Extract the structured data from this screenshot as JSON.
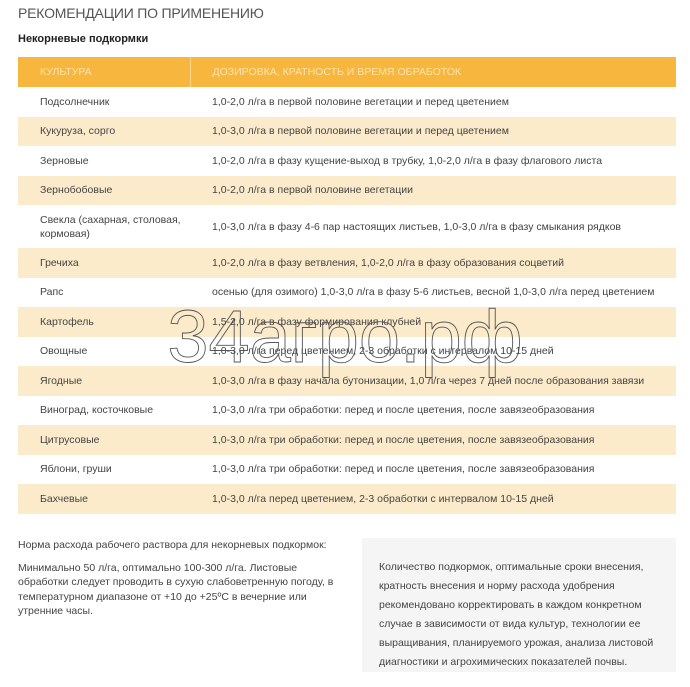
{
  "title": "РЕКОМЕНДАЦИИ ПО ПРИМЕНЕНИЮ",
  "subtitle": "Некорневые подкормки",
  "table": {
    "headers": [
      "КУЛЬТУРА",
      "ДОЗИРОВКА, КРАТНОСТЬ И ВРЕМЯ ОБРАБОТОК"
    ],
    "header_color": "#f7b73e",
    "stripe_color": "#fcebcb",
    "rows": [
      [
        "Подсолнечник",
        "1,0-2,0 л/га в первой половине вегетации и перед цветением"
      ],
      [
        "Кукуруза, сорго",
        "1,0-3,0 л/га в первой половине вегетации и перед цветением"
      ],
      [
        "Зерновые",
        "1,0-2,0 л/га в фазу кущение-выход в трубку, 1,0-2,0 л/га в фазу флагового листа"
      ],
      [
        "Зернобобовые",
        "1,0-2,0 л/га в первой половине вегетации"
      ],
      [
        "Свекла (сахарная, столовая, кормовая)",
        "1,0-3,0 л/га в фазу 4-6 пар настоящих листьев, 1,0-3,0 л/га в фазу смыкания рядков"
      ],
      [
        "Гречиха",
        "1,0-2,0 л/га в фазу ветвления, 1,0-2,0 л/га в фазу образования соцветий"
      ],
      [
        "Рапс",
        "осенью (для озимого) 1,0-3,0 л/га в фазу 5-6 листьев, весной 1,0-3,0 л/га перед цветением"
      ],
      [
        "Картофель",
        "1,5-2,0 л/га в фазу формирования клубней"
      ],
      [
        "Овощные",
        "1,0-3,0 л/га перед цветением, 2-3 обработки с интервалом 10-15 дней"
      ],
      [
        "Ягодные",
        "1,0-3,0 л/га в фазу начала бутонизации, 1,0 л/га через 7 дней после образования завязи"
      ],
      [
        "Виноград, косточковые",
        "1,0-3,0 л/га три обработки: перед и после цветения, после завязеобразования"
      ],
      [
        "Цитрусовые",
        "1,0-3,0 л/га три обработки: перед и после цветения, после завязеобразования"
      ],
      [
        "Яблони, груши",
        "1,0-3,0 л/га три обработки: перед и после цветения, после завязеобразования"
      ],
      [
        "Бахчевые",
        "1,0-3,0 л/га перед цветением, 2-3 обработки с интервалом 10-15 дней"
      ]
    ]
  },
  "norm": {
    "heading": "Норма расхода рабочего раствора для некорневых подкормок:",
    "text": "Минимально 50 л/га, оптимально 100-300 л/га. Листовые обработки следует проводить в сухую слабоветренную погоду, в температурном диапазоне от +10 до +25ºС в вечерние или утренние часы."
  },
  "note": "Количество подкормок, оптимальные сроки внесения, кратность внесения и норму расхода удобрения рекомендовано корректировать в каждом конкретном случае в зависимости от вида культур, технологии ее выращивания, планируемого урожая, анализа листовой диагностики и агрохимических показателей почвы.",
  "watermark": "34агро.рф"
}
